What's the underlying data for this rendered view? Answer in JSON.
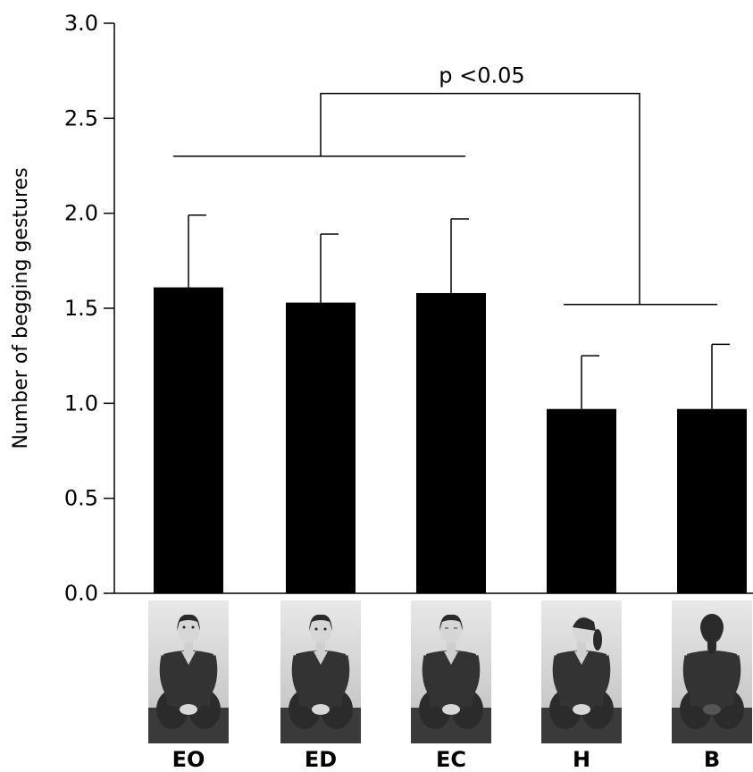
{
  "chart_data": {
    "type": "bar",
    "ylabel": "Number of begging gestures",
    "ylim": [
      0,
      3.0
    ],
    "yticks": [
      "0.0",
      "0.5",
      "1.0",
      "1.5",
      "2.0",
      "2.5",
      "3.0"
    ],
    "categories": [
      "EO",
      "ED",
      "EC",
      "H",
      "B"
    ],
    "values": [
      1.61,
      1.53,
      1.58,
      0.97,
      0.97
    ],
    "error_upper": [
      1.99,
      1.89,
      1.97,
      1.25,
      1.31
    ],
    "significance": {
      "label": "p <0.05",
      "group_a": [
        "EO",
        "ED",
        "EC"
      ],
      "group_b": [
        "H",
        "B"
      ]
    },
    "bar_color": "#000000",
    "grid": false,
    "category_images": [
      "person-facing-eyes-open",
      "person-facing-eyes-down",
      "person-facing-eyes-closed",
      "person-head-turned",
      "person-back-turned"
    ]
  }
}
